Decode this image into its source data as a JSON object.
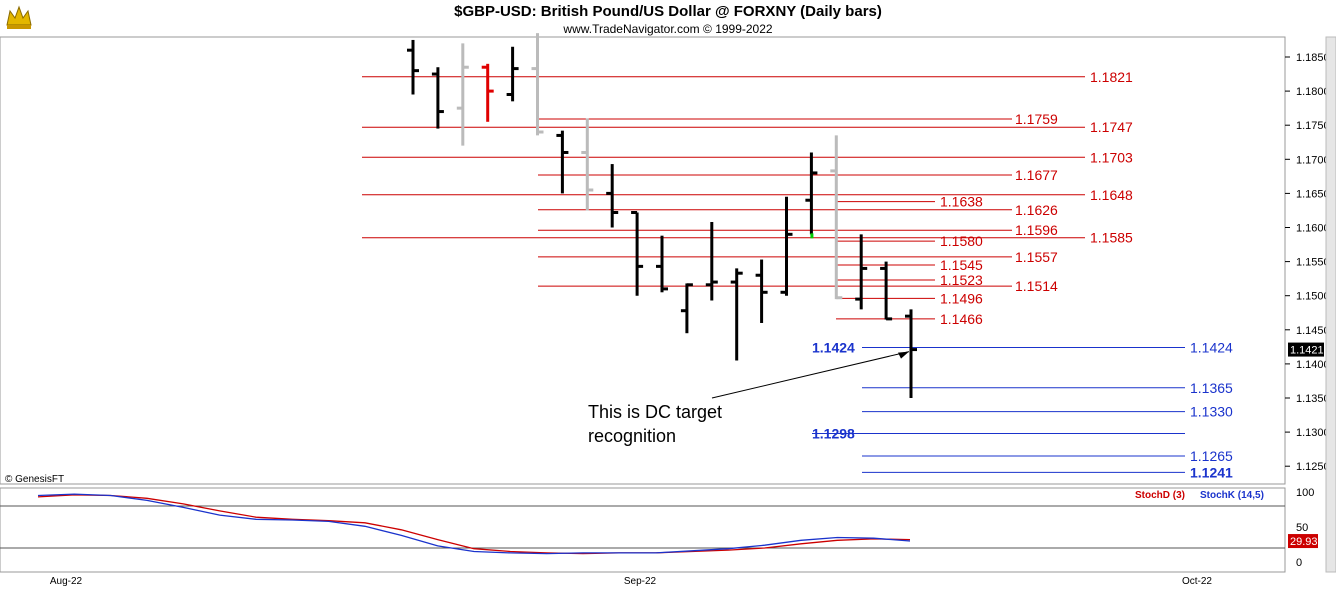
{
  "header": {
    "title": "$GBP-USD:  British Pound/US Dollar @ FORXNY  (Daily bars)",
    "copyright": "www.TradeNavigator.com © 1999-2022"
  },
  "chart_data": [
    {
      "type": "ohlc",
      "price_axis": {
        "ticks": [
          "1.1850",
          "1.1800",
          "1.1750",
          "1.1700",
          "1.1650",
          "1.1600",
          "1.1550",
          "1.1500",
          "1.1450",
          "1.1400",
          "1.1350",
          "1.1300",
          "1.1250"
        ],
        "ylim": [
          1.225,
          1.184
        ]
      },
      "x_axis": {
        "ticks": [
          "Aug-22",
          "Sep-22",
          "Oct-22"
        ]
      },
      "last_price": {
        "label": "1.1421",
        "value": 1.1421
      },
      "watermark": "© GenesisFT",
      "bars": [
        {
          "i": 0,
          "o": 1.186,
          "h": 1.1875,
          "l": 1.1795,
          "c": 1.183,
          "color": "#000000"
        },
        {
          "i": 1,
          "o": 1.1825,
          "h": 1.1835,
          "l": 1.1745,
          "c": 1.177,
          "color": "#000000"
        },
        {
          "i": 2,
          "o": 1.1775,
          "h": 1.187,
          "l": 1.172,
          "c": 1.1835,
          "color": "#bbbbbb"
        },
        {
          "i": 3,
          "o": 1.1835,
          "h": 1.184,
          "l": 1.1755,
          "c": 1.18,
          "color": "#e00000"
        },
        {
          "i": 4,
          "o": 1.1795,
          "h": 1.1865,
          "l": 1.1785,
          "c": 1.1833,
          "color": "#000000"
        },
        {
          "i": 5,
          "o": 1.1833,
          "h": 1.1885,
          "l": 1.1735,
          "c": 1.174,
          "color": "#bbbbbb"
        },
        {
          "i": 6,
          "o": 1.1735,
          "h": 1.1742,
          "l": 1.165,
          "c": 1.171,
          "color": "#000000"
        },
        {
          "i": 7,
          "o": 1.171,
          "h": 1.176,
          "l": 1.1625,
          "c": 1.1655,
          "color": "#bbbbbb"
        },
        {
          "i": 8,
          "o": 1.165,
          "h": 1.1693,
          "l": 1.16,
          "c": 1.1622,
          "color": "#000000"
        },
        {
          "i": 9,
          "o": 1.1622,
          "h": 1.1622,
          "l": 1.15,
          "c": 1.1543,
          "color": "#000000"
        },
        {
          "i": 10,
          "o": 1.1543,
          "h": 1.1588,
          "l": 1.1505,
          "c": 1.151,
          "color": "#000000"
        },
        {
          "i": 11,
          "o": 1.1478,
          "h": 1.1518,
          "l": 1.1445,
          "c": 1.1516,
          "color": "#000000"
        },
        {
          "i": 12,
          "o": 1.1516,
          "h": 1.1608,
          "l": 1.1493,
          "c": 1.152,
          "color": "#000000"
        },
        {
          "i": 13,
          "o": 1.152,
          "h": 1.154,
          "l": 1.1405,
          "c": 1.1533,
          "color": "#000000"
        },
        {
          "i": 14,
          "o": 1.153,
          "h": 1.1553,
          "l": 1.146,
          "c": 1.1505,
          "color": "#000000"
        },
        {
          "i": 15,
          "o": 1.1505,
          "h": 1.1645,
          "l": 1.15,
          "c": 1.159,
          "color": "#000000"
        },
        {
          "i": 16,
          "o": 1.164,
          "h": 1.171,
          "l": 1.159,
          "c": 1.168,
          "color": "#000000"
        },
        {
          "i": 17,
          "o": 1.1683,
          "h": 1.1735,
          "l": 1.1495,
          "c": 1.1497,
          "color": "#bbbbbb"
        },
        {
          "i": 18,
          "o": 1.1495,
          "h": 1.159,
          "l": 1.148,
          "c": 1.154,
          "color": "#000000"
        },
        {
          "i": 19,
          "o": 1.154,
          "h": 1.155,
          "l": 1.1465,
          "c": 1.1466,
          "color": "#000000"
        },
        {
          "i": 20,
          "o": 1.147,
          "h": 1.148,
          "l": 1.135,
          "c": 1.1421,
          "color": "#000000"
        }
      ],
      "levels": [
        {
          "label": "1.1821",
          "value": 1.1821,
          "color": "#cc0000",
          "bold": false
        },
        {
          "label": "1.1759",
          "value": 1.1759,
          "color": "#cc0000",
          "bold": false
        },
        {
          "label": "1.1747",
          "value": 1.1747,
          "color": "#cc0000",
          "bold": false
        },
        {
          "label": "1.1703",
          "value": 1.1703,
          "color": "#cc0000",
          "bold": false
        },
        {
          "label": "1.1677",
          "value": 1.1677,
          "color": "#cc0000",
          "bold": false
        },
        {
          "label": "1.1648",
          "value": 1.1648,
          "color": "#cc0000",
          "bold": false
        },
        {
          "label": "1.1638",
          "value": 1.1638,
          "color": "#cc0000",
          "bold": false
        },
        {
          "label": "1.1626",
          "value": 1.1626,
          "color": "#cc0000",
          "bold": false
        },
        {
          "label": "1.1596",
          "value": 1.1596,
          "color": "#cc0000",
          "bold": false
        },
        {
          "label": "1.1585",
          "value": 1.1585,
          "color": "#cc0000",
          "bold": false
        },
        {
          "label": "1.1580",
          "value": 1.158,
          "color": "#cc0000",
          "bold": false
        },
        {
          "label": "1.1557",
          "value": 1.1557,
          "color": "#cc0000",
          "bold": false
        },
        {
          "label": "1.1545",
          "value": 1.1545,
          "color": "#cc0000",
          "bold": false
        },
        {
          "label": "1.1523",
          "value": 1.1523,
          "color": "#cc0000",
          "bold": false
        },
        {
          "label": "1.1514",
          "value": 1.1514,
          "color": "#cc0000",
          "bold": false
        },
        {
          "label": "1.1496",
          "value": 1.1496,
          "color": "#cc0000",
          "bold": false
        },
        {
          "label": "1.1466",
          "value": 1.1466,
          "color": "#cc0000",
          "bold": false
        },
        {
          "label": "1.1424",
          "value": 1.1424,
          "color": "#1a33cc",
          "bold": false
        },
        {
          "label": "1.1424",
          "value": 1.1424,
          "color": "#1a33cc",
          "bold": true
        },
        {
          "label": "1.1365",
          "value": 1.1365,
          "color": "#1a33cc",
          "bold": false
        },
        {
          "label": "1.1330",
          "value": 1.133,
          "color": "#1a33cc",
          "bold": false
        },
        {
          "label": "1.1298",
          "value": 1.1298,
          "color": "#1a33cc",
          "bold": true
        },
        {
          "label": "1.1265",
          "value": 1.1265,
          "color": "#1a33cc",
          "bold": false
        },
        {
          "label": "1.1241",
          "value": 1.1241,
          "color": "#1a33cc",
          "bold": true
        }
      ],
      "annotation": {
        "text_lines": [
          "This is DC target",
          "recognition"
        ],
        "points_to_bar": 20,
        "points_to_value": 1.1421
      }
    },
    {
      "type": "line",
      "panel": "stochastic",
      "ylim": [
        0,
        100
      ],
      "y_ticks": [
        "100",
        "50",
        "0"
      ],
      "last_value": {
        "label": "29.93",
        "value": 29.93
      },
      "series": [
        {
          "name": "StochD (3)",
          "color": "#cc0000",
          "values": [
            93,
            96,
            95,
            91,
            83,
            73,
            64,
            61,
            59,
            56,
            46,
            32,
            19,
            15,
            13,
            12,
            13,
            13,
            15,
            17,
            20,
            26,
            31,
            33,
            32
          ]
        },
        {
          "name": "StochK (14,5)",
          "color": "#1a33cc",
          "values": [
            95,
            97,
            95,
            88,
            78,
            67,
            61,
            60,
            58,
            51,
            38,
            23,
            15,
            13,
            12,
            13,
            13,
            13,
            16,
            19,
            24,
            31,
            35,
            34,
            30
          ]
        }
      ]
    }
  ]
}
